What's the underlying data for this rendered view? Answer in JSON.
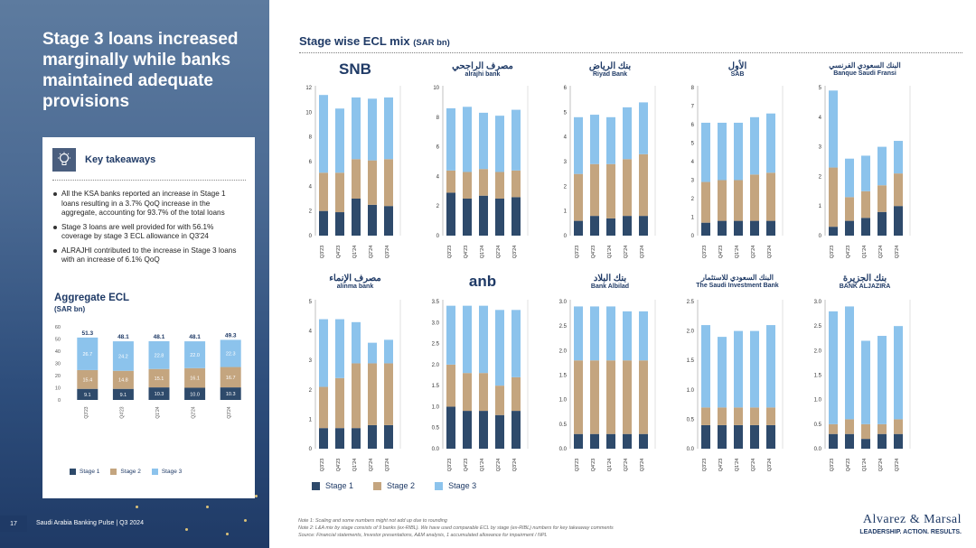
{
  "headline": "Stage 3 loans increased marginally while banks maintained adequate provisions",
  "takeaways": {
    "title": "Key takeaways",
    "icon": "lightbulb-icon",
    "items": [
      "All the KSA banks reported an increase in Stage 1 loans resulting in a 3.7% QoQ increase in the aggregate, accounting for 93.7% of the total loans",
      "Stage 3 loans are well provided for with 56.1% coverage by stage 3 ECL allowance in Q3'24",
      "ALRAJHI contributed to the increase in Stage 3 loans with an increase of 6.1% QoQ"
    ]
  },
  "aggregate": {
    "title": "Aggregate ECL",
    "subtitle": "(SAR bn)"
  },
  "main": {
    "title": "Stage wise ECL mix",
    "unit": "(SAR bn)"
  },
  "legend": [
    "Stage 1",
    "Stage 2",
    "Stage 3"
  ],
  "colors": {
    "stage1": "#2e4a6b",
    "stage2": "#c4a57f",
    "stage3": "#8cc3ec",
    "navy": "#1f3a66"
  },
  "logos": [
    {
      "text": "SNB",
      "sub": ""
    },
    {
      "text": "مصرف الراجحي",
      "sub": "alrajhi bank"
    },
    {
      "text": "بنك الرياض",
      "sub": "Riyad Bank"
    },
    {
      "text": "الأول",
      "sub": "SAB"
    },
    {
      "text": "البنك السعودي الفرنسي",
      "sub": "Banque Saudi Fransi"
    },
    {
      "text": "مصرف الإنماء",
      "sub": "alinma bank"
    },
    {
      "text": "anb",
      "sub": ""
    },
    {
      "text": "بنك البلاد",
      "sub": "Bank Albilad"
    },
    {
      "text": "البنك السعودي للاستثمار",
      "sub": "The Saudi Investment Bank"
    },
    {
      "text": "بنك الجزيرة",
      "sub": "BANK ALJAZIRA"
    }
  ],
  "chart_data": [
    {
      "type": "stacked-bar",
      "title": "Aggregate ECL",
      "unit": "SAR bn",
      "categories": [
        "Q3'23",
        "Q4'23",
        "Q1'24",
        "Q2'24",
        "Q3'24"
      ],
      "series": [
        {
          "name": "Stage 1",
          "values": [
            9.1,
            9.1,
            10.3,
            10.0,
            10.3
          ]
        },
        {
          "name": "Stage 2",
          "values": [
            15.4,
            14.8,
            15.1,
            16.1,
            16.7
          ]
        },
        {
          "name": "Stage 3",
          "values": [
            26.7,
            24.2,
            22.8,
            22.0,
            22.3
          ]
        }
      ],
      "totals": [
        51.3,
        48.1,
        48.1,
        48.1,
        49.3
      ],
      "ylim": [
        0,
        60
      ],
      "yticks": [
        0,
        10,
        20,
        30,
        40,
        50,
        60
      ]
    },
    {
      "type": "stacked-bar",
      "bank": "SNB",
      "categories": [
        "Q3'23",
        "Q4'23",
        "Q1'24",
        "Q2'24",
        "Q3'24"
      ],
      "series": [
        {
          "name": "Stage 1",
          "values": [
            2.0,
            1.9,
            3.0,
            2.5,
            2.4
          ]
        },
        {
          "name": "Stage 2",
          "values": [
            3.1,
            3.2,
            3.2,
            3.6,
            3.8
          ]
        },
        {
          "name": "Stage 3",
          "values": [
            6.3,
            5.2,
            5.0,
            5.0,
            5.0
          ]
        }
      ],
      "ylim": [
        0,
        12
      ],
      "yticks": [
        0,
        2,
        4,
        6,
        8,
        10,
        12
      ]
    },
    {
      "type": "stacked-bar",
      "bank": "Alrajhi",
      "categories": [
        "Q3'23",
        "Q4'23",
        "Q1'24",
        "Q2'24",
        "Q3'24"
      ],
      "series": [
        {
          "name": "Stage 1",
          "values": [
            2.9,
            2.5,
            2.7,
            2.5,
            2.6
          ]
        },
        {
          "name": "Stage 2",
          "values": [
            1.5,
            1.8,
            1.8,
            1.8,
            1.8
          ]
        },
        {
          "name": "Stage 3",
          "values": [
            4.2,
            4.4,
            3.8,
            3.8,
            4.1
          ]
        }
      ],
      "ylim": [
        0,
        10
      ],
      "yticks": [
        0,
        2,
        4,
        6,
        8,
        10
      ]
    },
    {
      "type": "stacked-bar",
      "bank": "Riyad Bank",
      "categories": [
        "Q3'23",
        "Q4'23",
        "Q1'24",
        "Q2'24",
        "Q3'24"
      ],
      "series": [
        {
          "name": "Stage 1",
          "values": [
            0.6,
            0.8,
            0.7,
            0.8,
            0.8
          ]
        },
        {
          "name": "Stage 2",
          "values": [
            1.9,
            2.1,
            2.2,
            2.3,
            2.5
          ]
        },
        {
          "name": "Stage 3",
          "values": [
            2.3,
            2.0,
            1.9,
            2.1,
            2.1
          ]
        }
      ],
      "ylim": [
        0,
        6
      ],
      "yticks": [
        0,
        1,
        2,
        3,
        4,
        5,
        6
      ]
    },
    {
      "type": "stacked-bar",
      "bank": "SAB",
      "categories": [
        "Q3'23",
        "Q4'23",
        "Q1'24",
        "Q2'24",
        "Q3'24"
      ],
      "series": [
        {
          "name": "Stage 1",
          "values": [
            0.7,
            0.8,
            0.8,
            0.8,
            0.8
          ]
        },
        {
          "name": "Stage 2",
          "values": [
            2.2,
            2.2,
            2.2,
            2.5,
            2.6
          ]
        },
        {
          "name": "Stage 3",
          "values": [
            3.2,
            3.1,
            3.1,
            3.1,
            3.2
          ]
        }
      ],
      "ylim": [
        0,
        8
      ],
      "yticks": [
        0,
        1,
        2,
        3,
        4,
        5,
        6,
        7,
        8
      ]
    },
    {
      "type": "stacked-bar",
      "bank": "BSF",
      "categories": [
        "Q3'23",
        "Q4'23",
        "Q1'24",
        "Q2'24",
        "Q3'24"
      ],
      "series": [
        {
          "name": "Stage 1",
          "values": [
            0.3,
            0.5,
            0.6,
            0.8,
            1.0
          ]
        },
        {
          "name": "Stage 2",
          "values": [
            2.0,
            0.8,
            0.9,
            0.9,
            1.1
          ]
        },
        {
          "name": "Stage 3",
          "values": [
            2.6,
            1.3,
            1.2,
            1.3,
            1.1
          ]
        }
      ],
      "ylim": [
        0,
        5
      ],
      "yticks": [
        0,
        1,
        2,
        3,
        4,
        5
      ]
    },
    {
      "type": "stacked-bar",
      "bank": "Alinma",
      "categories": [
        "Q3'23",
        "Q4'23",
        "Q1'24",
        "Q2'24",
        "Q3'24"
      ],
      "series": [
        {
          "name": "Stage 1",
          "values": [
            0.7,
            0.7,
            0.7,
            0.8,
            0.8
          ]
        },
        {
          "name": "Stage 2",
          "values": [
            1.4,
            1.7,
            2.2,
            2.1,
            2.1
          ]
        },
        {
          "name": "Stage 3",
          "values": [
            2.3,
            2.0,
            1.4,
            0.7,
            0.8
          ]
        }
      ],
      "ylim": [
        0,
        5
      ],
      "yticks": [
        0,
        1,
        2,
        3,
        4,
        5
      ]
    },
    {
      "type": "stacked-bar",
      "bank": "ANB",
      "categories": [
        "Q3'23",
        "Q4'23",
        "Q1'24",
        "Q2'24",
        "Q3'24"
      ],
      "series": [
        {
          "name": "Stage 1",
          "values": [
            1.0,
            0.9,
            0.9,
            0.8,
            0.9
          ]
        },
        {
          "name": "Stage 2",
          "values": [
            1.0,
            0.9,
            0.9,
            0.7,
            0.8
          ]
        },
        {
          "name": "Stage 3",
          "values": [
            1.4,
            1.6,
            1.6,
            1.8,
            1.6
          ]
        }
      ],
      "ylim": [
        0,
        3.5
      ],
      "yticks": [
        0,
        0.5,
        1.0,
        1.5,
        2.0,
        2.5,
        3.0,
        3.5
      ]
    },
    {
      "type": "stacked-bar",
      "bank": "Bank Albilad",
      "categories": [
        "Q3'23",
        "Q4'23",
        "Q1'24",
        "Q2'24",
        "Q3'24"
      ],
      "series": [
        {
          "name": "Stage 1",
          "values": [
            0.3,
            0.3,
            0.3,
            0.3,
            0.3
          ]
        },
        {
          "name": "Stage 2",
          "values": [
            1.5,
            1.5,
            1.5,
            1.5,
            1.5
          ]
        },
        {
          "name": "Stage 3",
          "values": [
            1.1,
            1.1,
            1.1,
            1.0,
            1.0
          ]
        }
      ],
      "ylim": [
        0,
        3.0
      ],
      "yticks": [
        0,
        0.5,
        1.0,
        1.5,
        2.0,
        2.5,
        3.0
      ]
    },
    {
      "type": "stacked-bar",
      "bank": "SAIB",
      "categories": [
        "Q3'23",
        "Q4'23",
        "Q1'24",
        "Q2'24",
        "Q3'24"
      ],
      "series": [
        {
          "name": "Stage 1",
          "values": [
            0.4,
            0.4,
            0.4,
            0.4,
            0.4
          ]
        },
        {
          "name": "Stage 2",
          "values": [
            0.3,
            0.3,
            0.3,
            0.3,
            0.3
          ]
        },
        {
          "name": "Stage 3",
          "values": [
            1.4,
            1.2,
            1.3,
            1.3,
            1.4
          ]
        }
      ],
      "ylim": [
        0,
        2.5
      ],
      "yticks": [
        0,
        0.5,
        1.0,
        1.5,
        2.0,
        2.5
      ]
    },
    {
      "type": "stacked-bar",
      "bank": "Bank Aljazira",
      "categories": [
        "Q3'23",
        "Q4'23",
        "Q1'24",
        "Q2'24",
        "Q3'24"
      ],
      "series": [
        {
          "name": "Stage 1",
          "values": [
            0.3,
            0.3,
            0.2,
            0.3,
            0.3
          ]
        },
        {
          "name": "Stage 2",
          "values": [
            0.2,
            0.3,
            0.3,
            0.2,
            0.3
          ]
        },
        {
          "name": "Stage 3",
          "values": [
            2.3,
            2.3,
            1.7,
            1.8,
            1.9
          ]
        }
      ],
      "ylim": [
        0,
        3.0
      ],
      "yticks": [
        0,
        0.5,
        1.0,
        1.5,
        2.0,
        2.5,
        3.0
      ]
    }
  ],
  "footer": {
    "page": "17",
    "title": "Saudi Arabia Banking Pulse | Q3 2024",
    "notes": [
      "Note 1: Scaling and some numbers might not add up due to rounding",
      "Note 2: L&A mix by stage consists of 9 banks (ex-RIBL). We have used comparable ECL by stage (ex-RIBL) numbers for key takeaway comments",
      "Source: Financial statements, Investor presentations, A&M analysis, 1 accumulated allowance for impairment / NPL"
    ],
    "brand": "Alvarez & Marsal",
    "tagline": "LEADERSHIP. ACTION. RESULTS."
  }
}
